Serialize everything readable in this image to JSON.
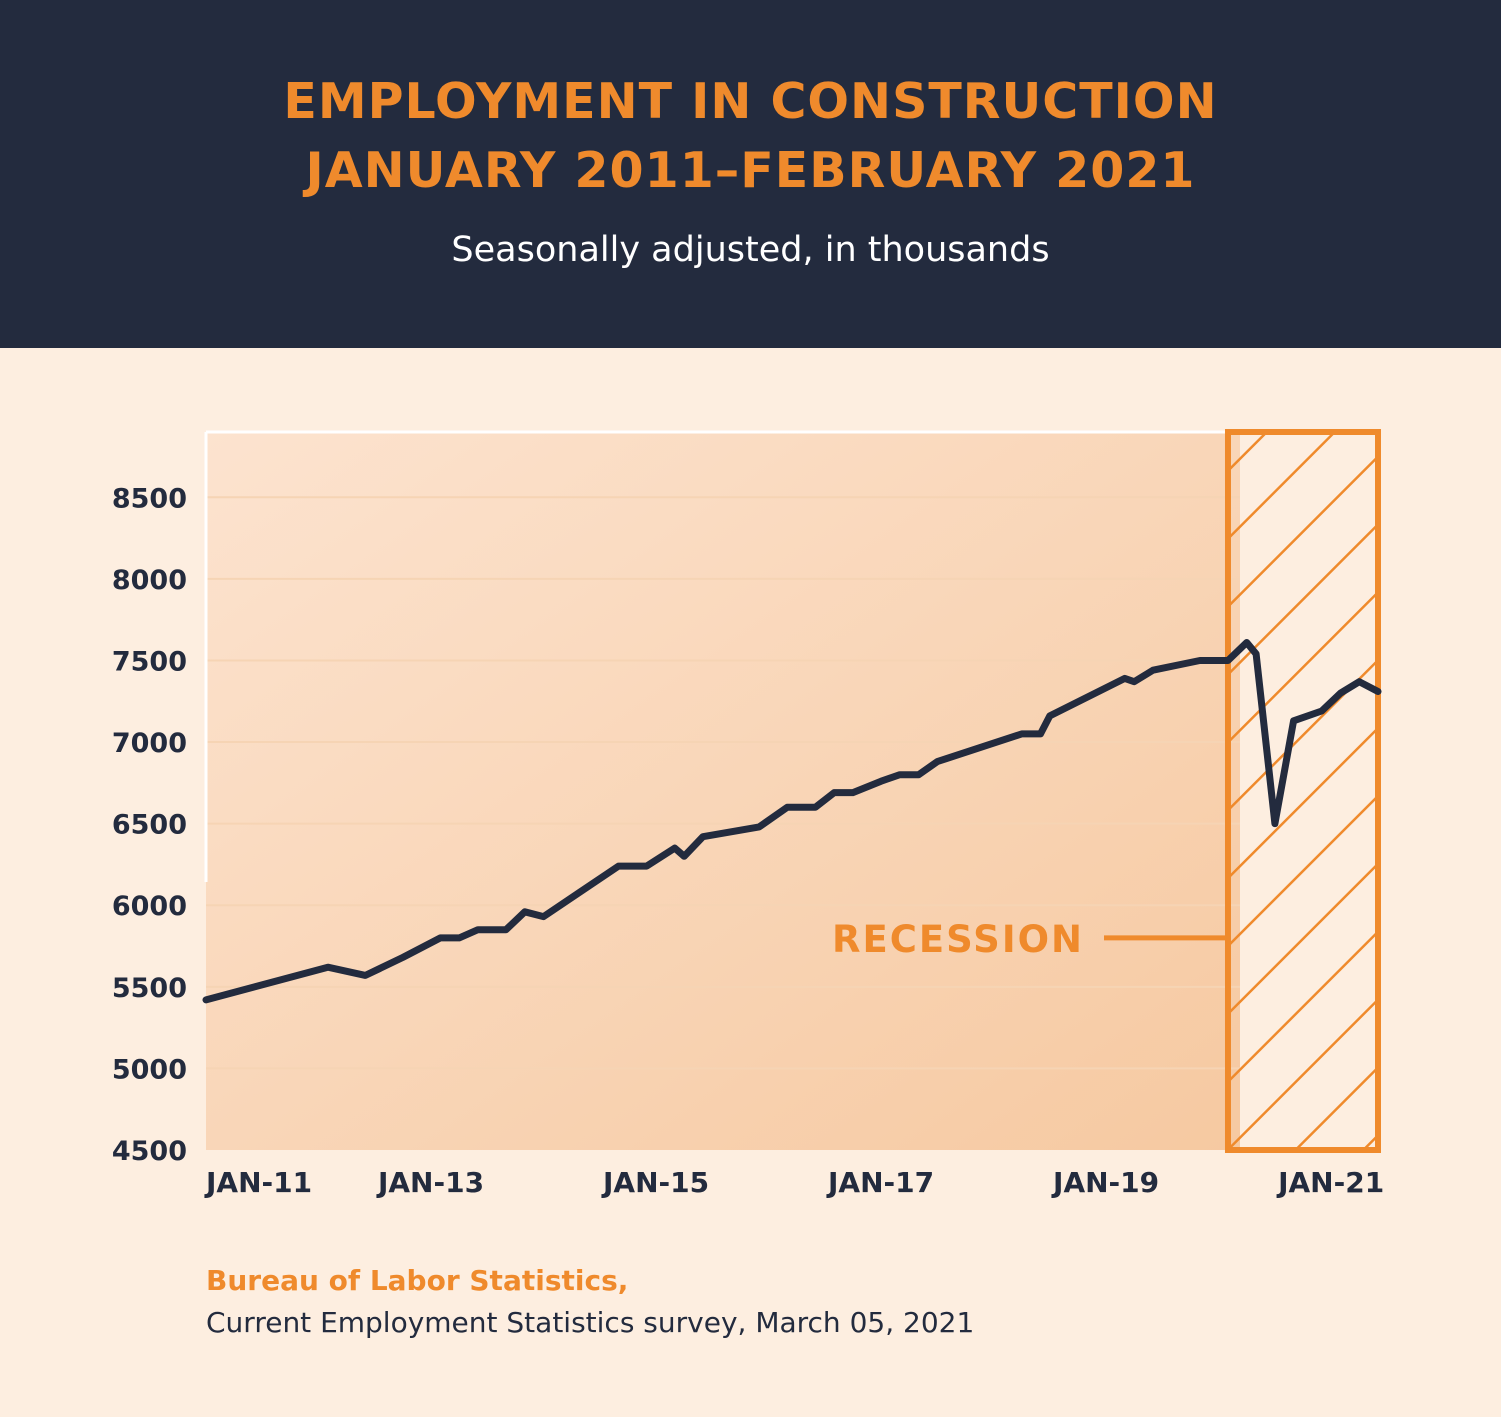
{
  "header": {
    "title_line1": "EMPLOYMENT IN CONSTRUCTION",
    "title_line2": "JANUARY 2011–FEBRUARY 2021",
    "subtitle": "Seasonally adjusted, in thousands"
  },
  "colors": {
    "header_bg": "#232b3e",
    "accent_orange": "#ef8a2c",
    "line": "#232b3e",
    "background": "#fdeee0"
  },
  "chart_data": {
    "type": "line",
    "title": "EMPLOYMENT IN CONSTRUCTION JANUARY 2011–FEBRUARY 2021",
    "subtitle": "Seasonally adjusted, in thousands",
    "xlabel": "",
    "ylabel": "",
    "ylim": [
      4500,
      8900
    ],
    "xlim": [
      "2011-01",
      "2021-06"
    ],
    "yticks": [
      8500,
      8000,
      7500,
      7000,
      6500,
      6000,
      5500,
      5000,
      4500
    ],
    "xticks": [
      {
        "label": "JAN-11",
        "x": "2011-01"
      },
      {
        "label": "JAN-13",
        "x": "2013-01"
      },
      {
        "label": "JAN-15",
        "x": "2015-01"
      },
      {
        "label": "JAN-17",
        "x": "2017-01"
      },
      {
        "label": "JAN-19",
        "x": "2019-01"
      },
      {
        "label": "JAN-21",
        "x": "2021-01"
      }
    ],
    "grid": true,
    "series": [
      {
        "points": [
          [
            "2011-01",
            5420
          ],
          [
            "2012-02",
            5620
          ],
          [
            "2012-06",
            5570
          ],
          [
            "2012-10",
            5680
          ],
          [
            "2013-02",
            5800
          ],
          [
            "2013-04",
            5800
          ],
          [
            "2013-06",
            5850
          ],
          [
            "2013-09",
            5850
          ],
          [
            "2013-11",
            5960
          ],
          [
            "2014-01",
            5930
          ],
          [
            "2014-09",
            6240
          ],
          [
            "2014-12",
            6240
          ],
          [
            "2015-03",
            6350
          ],
          [
            "2015-04",
            6300
          ],
          [
            "2015-06",
            6420
          ],
          [
            "2015-12",
            6480
          ],
          [
            "2016-03",
            6600
          ],
          [
            "2016-06",
            6600
          ],
          [
            "2016-08",
            6690
          ],
          [
            "2016-10",
            6690
          ],
          [
            "2017-01",
            6760
          ],
          [
            "2017-03",
            6800
          ],
          [
            "2017-05",
            6800
          ],
          [
            "2017-07",
            6880
          ],
          [
            "2018-04",
            7050
          ],
          [
            "2018-06",
            7050
          ],
          [
            "2018-07",
            7160
          ],
          [
            "2019-03",
            7390
          ],
          [
            "2019-04",
            7370
          ],
          [
            "2019-06",
            7440
          ],
          [
            "2019-11",
            7500
          ],
          [
            "2020-02",
            7500
          ],
          [
            "2020-04",
            7610
          ],
          [
            "2020-05",
            7540
          ],
          [
            "2020-07",
            6500
          ],
          [
            "2020-09",
            7130
          ],
          [
            "2020-12",
            7190
          ],
          [
            "2021-02",
            7300
          ],
          [
            "2021-04",
            7370
          ],
          [
            "2021-06",
            7310
          ]
        ]
      }
    ],
    "recession": {
      "label": "RECESSION",
      "start": "2020-02",
      "end": "2021-06"
    }
  },
  "source": {
    "name": "Bureau of Labor Statistics,",
    "detail": "Current Employment Statistics survey, March 05, 2021"
  }
}
